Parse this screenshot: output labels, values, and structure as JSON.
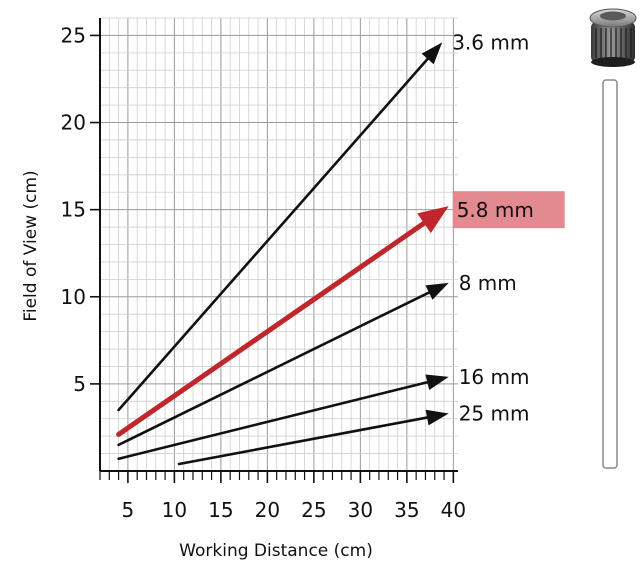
{
  "chart_data": {
    "type": "line",
    "xlabel": "Working Distance (cm)",
    "ylabel": "Field of View (cm)",
    "xlim": [
      2,
      40.5
    ],
    "ylim": [
      0,
      26
    ],
    "xticks": [
      5,
      10,
      15,
      20,
      25,
      30,
      35,
      40
    ],
    "xtick_labels": [
      "5",
      "10",
      "15",
      "20",
      "25",
      "30",
      "35",
      "40"
    ],
    "yticks": [
      5,
      10,
      15,
      20,
      25
    ],
    "ytick_labels": [
      "5",
      "10",
      "15",
      "20",
      "25"
    ],
    "grid": true,
    "series": [
      {
        "name": "3.6 mm",
        "x": [
          4,
          38.8
        ],
        "y": [
          3.5,
          24.6
        ],
        "color": "#111111",
        "highlight": false
      },
      {
        "name": "5.8 mm",
        "x": [
          4,
          39.5
        ],
        "y": [
          2.1,
          15.2
        ],
        "color": "#c0272d",
        "highlight": true,
        "label_bg": "#e28a8f"
      },
      {
        "name": "8 mm",
        "x": [
          4,
          39.5
        ],
        "y": [
          1.5,
          10.8
        ],
        "color": "#111111",
        "highlight": false
      },
      {
        "name": "16 mm",
        "x": [
          4,
          39.5
        ],
        "y": [
          0.7,
          5.4
        ],
        "color": "#111111",
        "highlight": false
      },
      {
        "name": "25 mm",
        "x": [
          10.5,
          39.5
        ],
        "y": [
          0.4,
          3.3
        ],
        "color": "#111111",
        "highlight": false
      }
    ]
  },
  "decoration": {
    "lens_icon": "camera-lens-icon",
    "focus_bar": "focus-range-bar"
  }
}
